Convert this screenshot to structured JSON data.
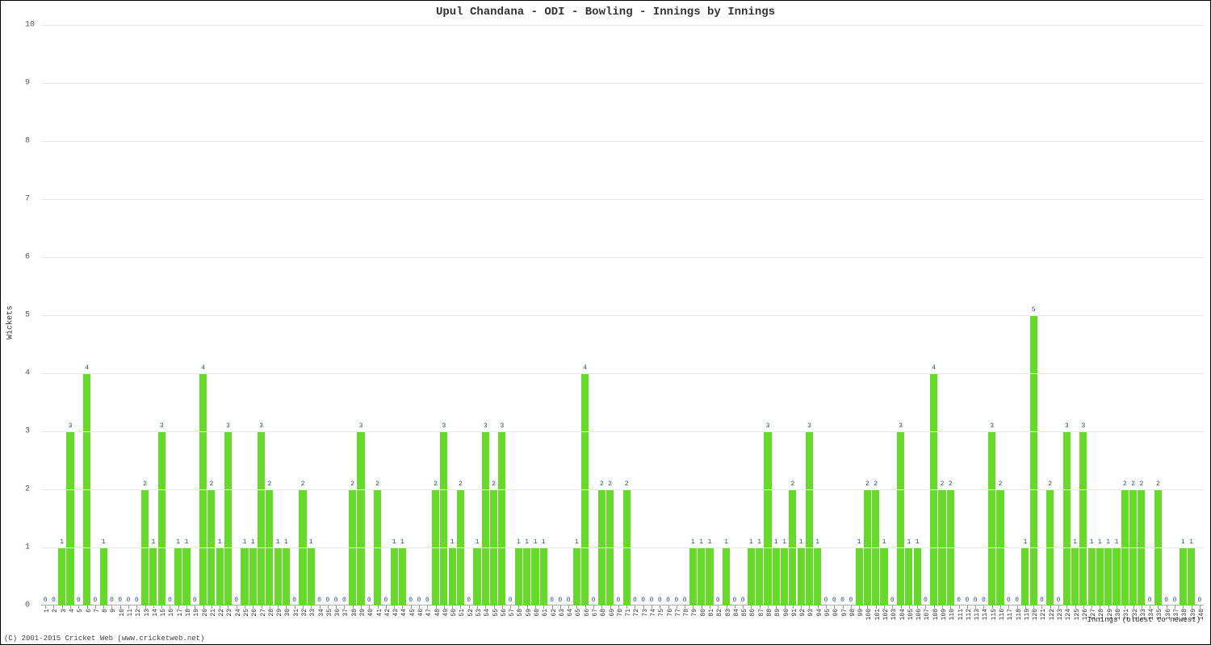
{
  "chart": {
    "type": "bar",
    "title": "Upul Chandana - ODI - Bowling - Innings by Innings",
    "ylabel": "Wickets",
    "xlabel": "Innings (oldest to newest)",
    "copyright": "(C) 2001-2015 Cricket Web (www.cricketweb.net)",
    "ylim": [
      0,
      10
    ],
    "ytick_step": 1,
    "background_color": "#ffffff",
    "grid_color": "#e7e7e7",
    "bar_color": "#66d92a",
    "value_label_color": "#2a4b8d",
    "title_fontsize": 14,
    "label_fontsize": 10,
    "tick_fontsize": 8,
    "values": [
      0,
      0,
      1,
      3,
      0,
      4,
      0,
      1,
      0,
      0,
      0,
      0,
      2,
      1,
      3,
      0,
      1,
      1,
      0,
      4,
      2,
      1,
      3,
      0,
      1,
      1,
      3,
      2,
      1,
      1,
      0,
      2,
      1,
      0,
      0,
      0,
      0,
      2,
      3,
      0,
      2,
      0,
      1,
      1,
      0,
      0,
      0,
      2,
      3,
      1,
      2,
      0,
      1,
      3,
      2,
      3,
      0,
      1,
      1,
      1,
      1,
      0,
      0,
      0,
      1,
      4,
      0,
      2,
      2,
      0,
      2,
      0,
      0,
      0,
      0,
      0,
      0,
      0,
      1,
      1,
      1,
      0,
      1,
      0,
      0,
      1,
      1,
      3,
      1,
      1,
      2,
      1,
      3,
      1,
      0,
      0,
      0,
      0,
      1,
      2,
      2,
      1,
      0,
      3,
      1,
      1,
      0,
      4,
      2,
      2,
      0,
      0,
      0,
      0,
      3,
      2,
      0,
      0,
      1,
      5,
      0,
      2,
      0,
      3,
      1,
      3,
      1,
      1,
      1,
      1,
      2,
      2,
      2,
      0,
      2,
      0,
      0,
      1,
      1,
      0
    ]
  }
}
